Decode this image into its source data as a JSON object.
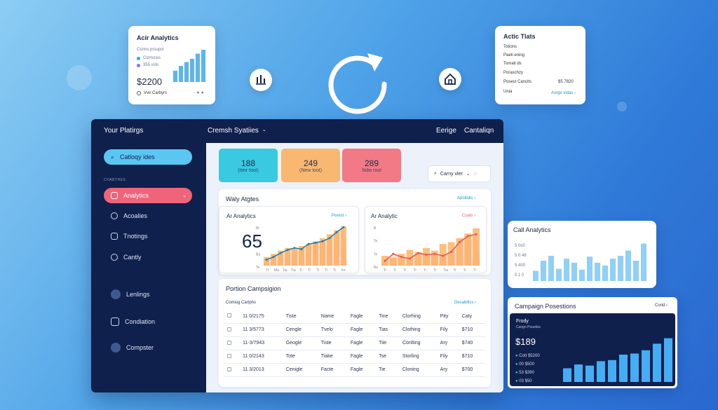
{
  "top_left_card": {
    "title": "Acir Analytics",
    "subtitle": "Csrms prsupst",
    "legend": [
      "Cizrrvces",
      "355 vsls"
    ],
    "value": "$2200",
    "footer": "Vvir Carbyrs",
    "bars": [
      0.35,
      0.5,
      0.62,
      0.72,
      0.88,
      1.0
    ]
  },
  "top_right_card": {
    "title": "Actic Tlats",
    "rows": [
      "Totions",
      "Paeti ening",
      "Tomatl ds",
      "Poraschzy"
    ],
    "row_last_label": "Posest Cancits",
    "row_last_value": "$5 7820",
    "footer_left": "Unia",
    "footer_link": "Asrge vidas ›"
  },
  "app": {
    "title": "Your Platirgs",
    "dropdown": "Cremsh Syatiies",
    "nav_right": [
      "Eerige",
      "Cantaliqn"
    ],
    "search_label": "Catloqy ides",
    "section_label": "CHARTHES",
    "sidebar_items": [
      "Analytics",
      "Acoalies",
      "Tnotings",
      "Cantly"
    ],
    "sidebar_bottom": [
      "Lenlings",
      "Condiation",
      "Compster"
    ],
    "stats": [
      {
        "value": "188",
        "label": "(tteir fool)",
        "color": "#39c9e0"
      },
      {
        "value": "249",
        "label": "(New tool)",
        "color": "#f8b872"
      },
      {
        "value": "289",
        "label": "Ndw rool",
        "color": "#f27a86"
      }
    ],
    "filter_label": "Carny vler",
    "main_panel_title": "Waly Atgtes",
    "main_panel_link": "Apoilidis ›",
    "chart_left": {
      "title": "Ar Analytics",
      "tag": "Porest ›",
      "big_value": "65"
    },
    "chart_right": {
      "title": "Ar Analytic",
      "tag": "Coals ›"
    },
    "table_title": "Portion Campsigion",
    "table_subtitle": "Comisg Cartphs",
    "table_link": "Desabllics ›",
    "table_rows": [
      [
        "11 0/2175",
        "Tiste",
        "Name",
        "Fagle",
        "Tine",
        "Clorhing",
        "Pity",
        "Caty"
      ],
      [
        "11 3/5773",
        "Cengle",
        "Tvelo",
        "Fagle",
        "Tias",
        "Clothing",
        "Fily",
        "$710"
      ],
      [
        "11-3/7943",
        "Geogle",
        "Tiste",
        "Fagle",
        "Tiie",
        "Conlting",
        "Ary",
        "$740"
      ],
      [
        "11 0/2143",
        "Tote",
        "Tiake",
        "Fagle",
        "Tse",
        "Storling",
        "Fily",
        "$710"
      ],
      [
        "11 3/2013",
        "Cenigle",
        "Facte",
        "Fagle",
        "Tie",
        "Cloning",
        "Ary",
        "$700"
      ]
    ]
  },
  "call_analytics": {
    "title": "Call Analytics",
    "y_labels": [
      "5 0s0",
      "5 0 48",
      "5 400",
      "5 1 0"
    ],
    "bars": [
      0.25,
      0.5,
      0.62,
      0.3,
      0.55,
      0.45,
      0.28,
      0.6,
      0.45,
      0.38,
      0.55,
      0.62,
      0.75,
      0.5,
      0.92
    ]
  },
  "campaign": {
    "title": "Campaign Posestions",
    "link": "Corid ›",
    "sub1": "Frody",
    "sub2": "Cangn Poustiss",
    "value": "$189",
    "legend": [
      "Cott $5200",
      "00 $500",
      "53 $390",
      "03 $50"
    ],
    "bars": [
      0.25,
      0.32,
      0.3,
      0.38,
      0.4,
      0.5,
      0.52,
      0.58,
      0.7,
      0.8
    ]
  },
  "chart_data": [
    {
      "type": "bar",
      "title": "Ar Analytics",
      "values": [
        0.22,
        0.3,
        0.38,
        0.45,
        0.42,
        0.5,
        0.55,
        0.62,
        0.7,
        0.8,
        0.9,
        1.0
      ],
      "line": [
        0.15,
        0.22,
        0.32,
        0.4,
        0.45,
        0.42,
        0.55,
        0.58,
        0.62,
        0.7,
        0.85,
        0.98
      ],
      "y_ticks": [
        "Br",
        "Be",
        "Ba",
        "Te"
      ],
      "x_ticks": [
        "Ti",
        "Ma",
        "Tia",
        "Tia",
        "Ti",
        "Ti",
        "Ti",
        "Ti",
        "Ti",
        "Fe"
      ]
    },
    {
      "type": "bar",
      "title": "Ar Analytic",
      "values": [
        0.25,
        0.2,
        0.3,
        0.4,
        0.35,
        0.45,
        0.38,
        0.55,
        0.6,
        0.7,
        0.82,
        0.95
      ],
      "line": [
        0.12,
        0.3,
        0.22,
        0.18,
        0.32,
        0.28,
        0.3,
        0.25,
        0.35,
        0.6,
        0.75,
        0.8
      ],
      "y_ticks": [
        "B",
        "Te",
        "Te",
        "Be"
      ],
      "x_ticks": [
        "Ti",
        "Ti",
        "Ti",
        "Ti",
        "Ti",
        "Ti",
        "Tia",
        "Ti",
        "Ti",
        "Ti"
      ]
    }
  ]
}
